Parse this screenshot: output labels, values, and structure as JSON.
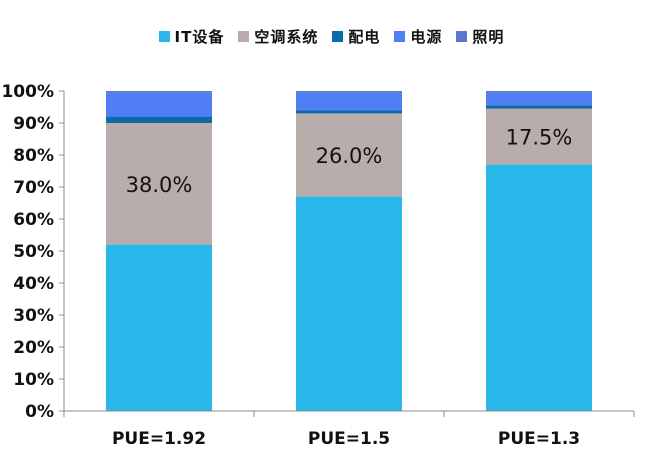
{
  "chart_data": {
    "type": "bar",
    "stacked": true,
    "categories": [
      "PUE=1.92",
      "PUE=1.5",
      "PUE=1.3"
    ],
    "series": [
      {
        "name": "IT设备",
        "color": "#29B6E8",
        "values": [
          52,
          67,
          77
        ]
      },
      {
        "name": "空调系统",
        "color": "#B8ADAB",
        "values": [
          38,
          26,
          17.5
        ]
      },
      {
        "name": "配电",
        "color": "#0B6BA6",
        "values": [
          2,
          1,
          1
        ]
      },
      {
        "name": "电源",
        "color": "#4F7EF5",
        "values": [
          7.5,
          5.5,
          4
        ]
      },
      {
        "name": "照明",
        "color": "#5B79C8",
        "values": [
          0.5,
          0.5,
          0.5
        ]
      }
    ],
    "data_labels": [
      "38.0%",
      "26.0%",
      "17.5%"
    ],
    "y_ticks": [
      "0%",
      "10%",
      "20%",
      "30%",
      "40%",
      "50%",
      "60%",
      "70%",
      "80%",
      "90%",
      "100%"
    ],
    "ylim": [
      0,
      100
    ],
    "legend_position": "top",
    "grid": false,
    "title": "",
    "xlabel": "",
    "ylabel": ""
  }
}
